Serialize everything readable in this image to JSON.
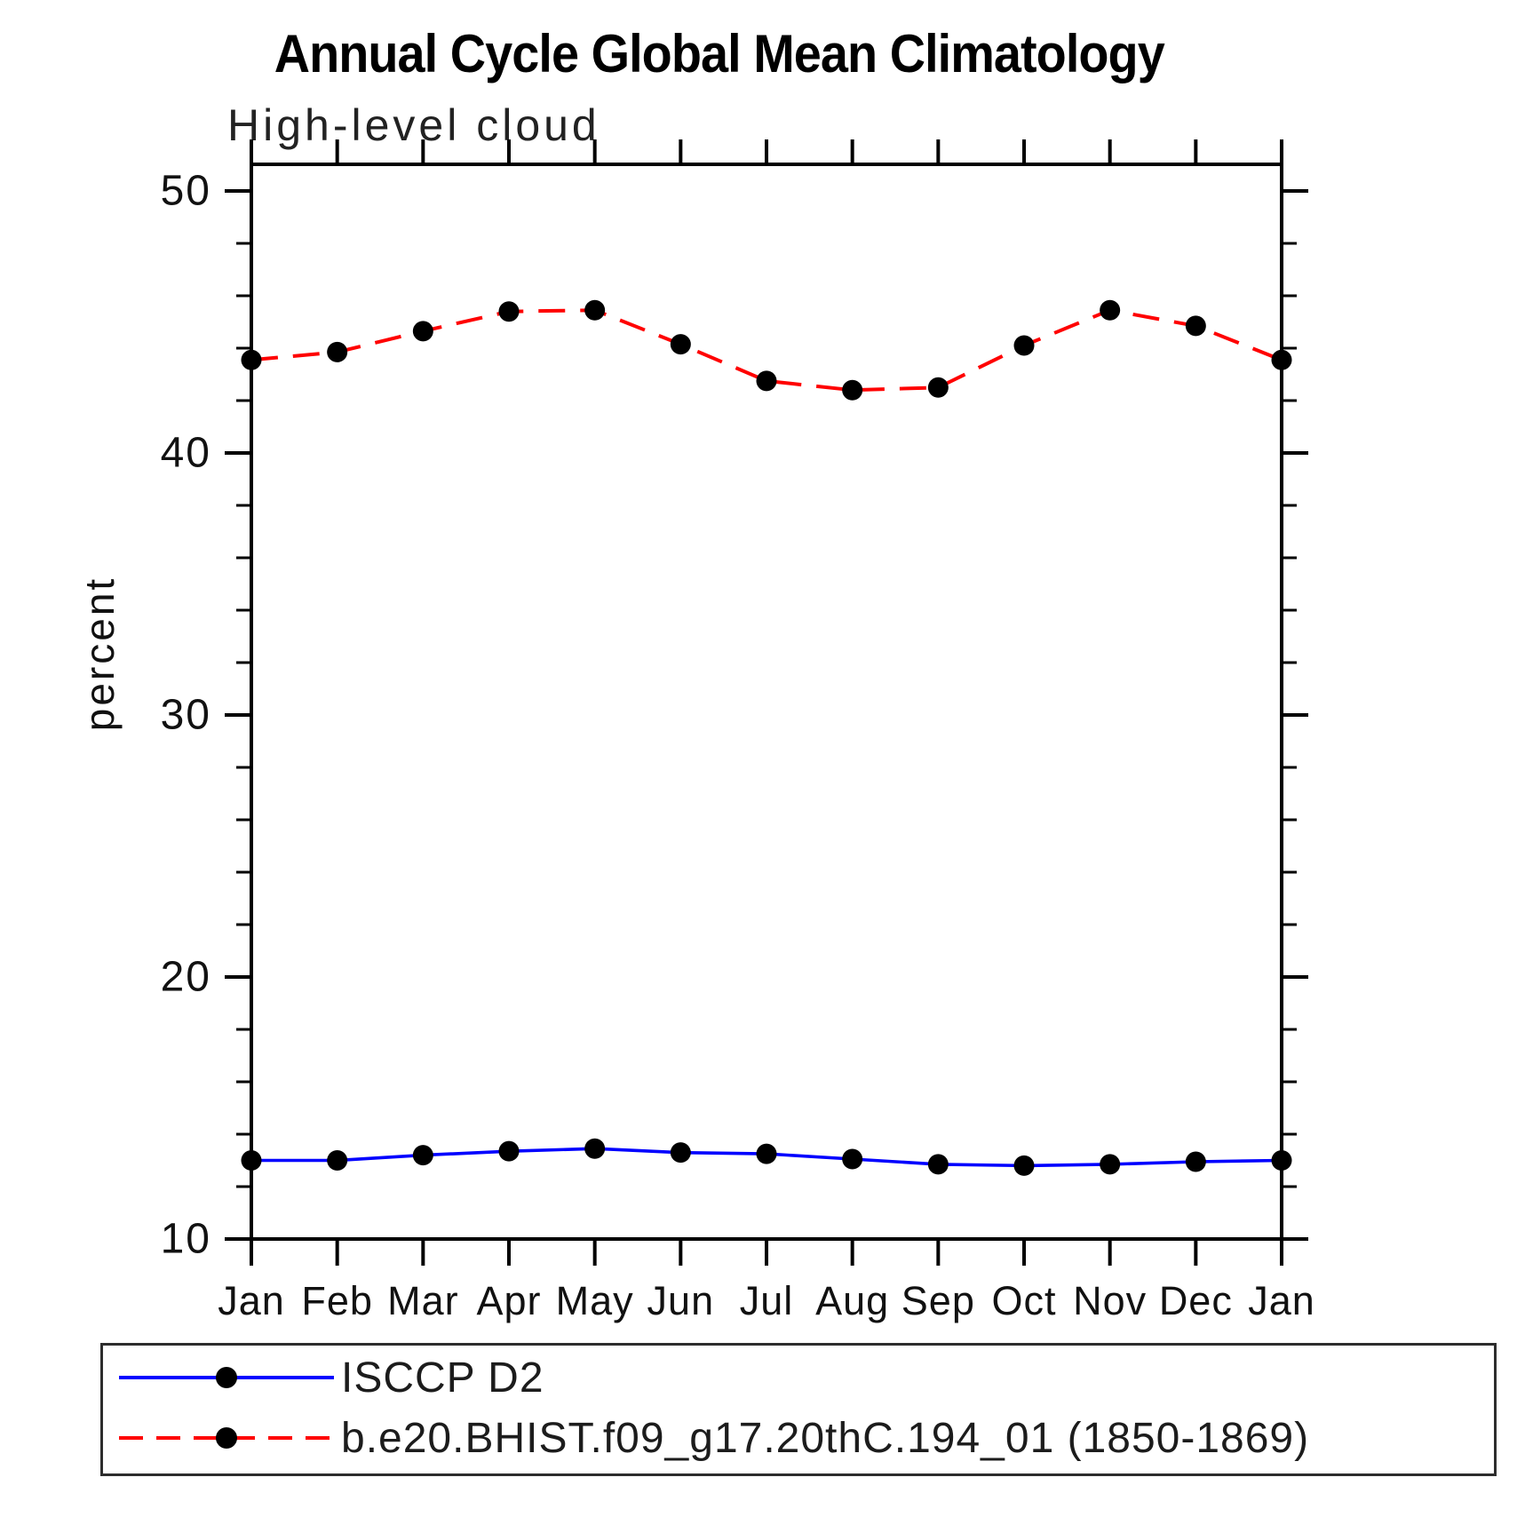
{
  "title": "Annual Cycle Global Mean Climatology",
  "subtitle": "High-level cloud",
  "ylabel": "percent",
  "colors": {
    "series1": "#0000ff",
    "series2": "#ff0000",
    "marker": "#000000",
    "axis": "#000000"
  },
  "chart_data": {
    "type": "line",
    "title": "Annual Cycle Global Mean Climatology",
    "subtitle": "High-level cloud",
    "xlabel": "",
    "ylabel": "percent",
    "categories": [
      "Jan",
      "Feb",
      "Mar",
      "Apr",
      "May",
      "Jun",
      "Jul",
      "Aug",
      "Sep",
      "Oct",
      "Nov",
      "Dec",
      "Jan"
    ],
    "ylim": [
      10,
      50
    ],
    "ytick_major": [
      10,
      20,
      30,
      40,
      50
    ],
    "ytick_minor_step": 2,
    "grid": false,
    "legend_position": "bottom",
    "series": [
      {
        "name": "ISCCP D2",
        "line_style": "solid",
        "color": "#0000ff",
        "marker": "circle",
        "marker_color": "#000000",
        "values": [
          13.0,
          13.0,
          13.2,
          13.35,
          13.45,
          13.3,
          13.25,
          13.05,
          12.85,
          12.8,
          12.85,
          12.95,
          13.0
        ]
      },
      {
        "name": "b.e20.BHIST.f09_g17.20thC.194_01 (1850-1869)",
        "line_style": "dashed",
        "color": "#ff0000",
        "marker": "circle",
        "marker_color": "#000000",
        "values": [
          43.55,
          43.85,
          44.65,
          45.4,
          45.45,
          44.15,
          42.75,
          42.4,
          42.5,
          44.1,
          45.45,
          44.85,
          43.55
        ]
      }
    ]
  }
}
